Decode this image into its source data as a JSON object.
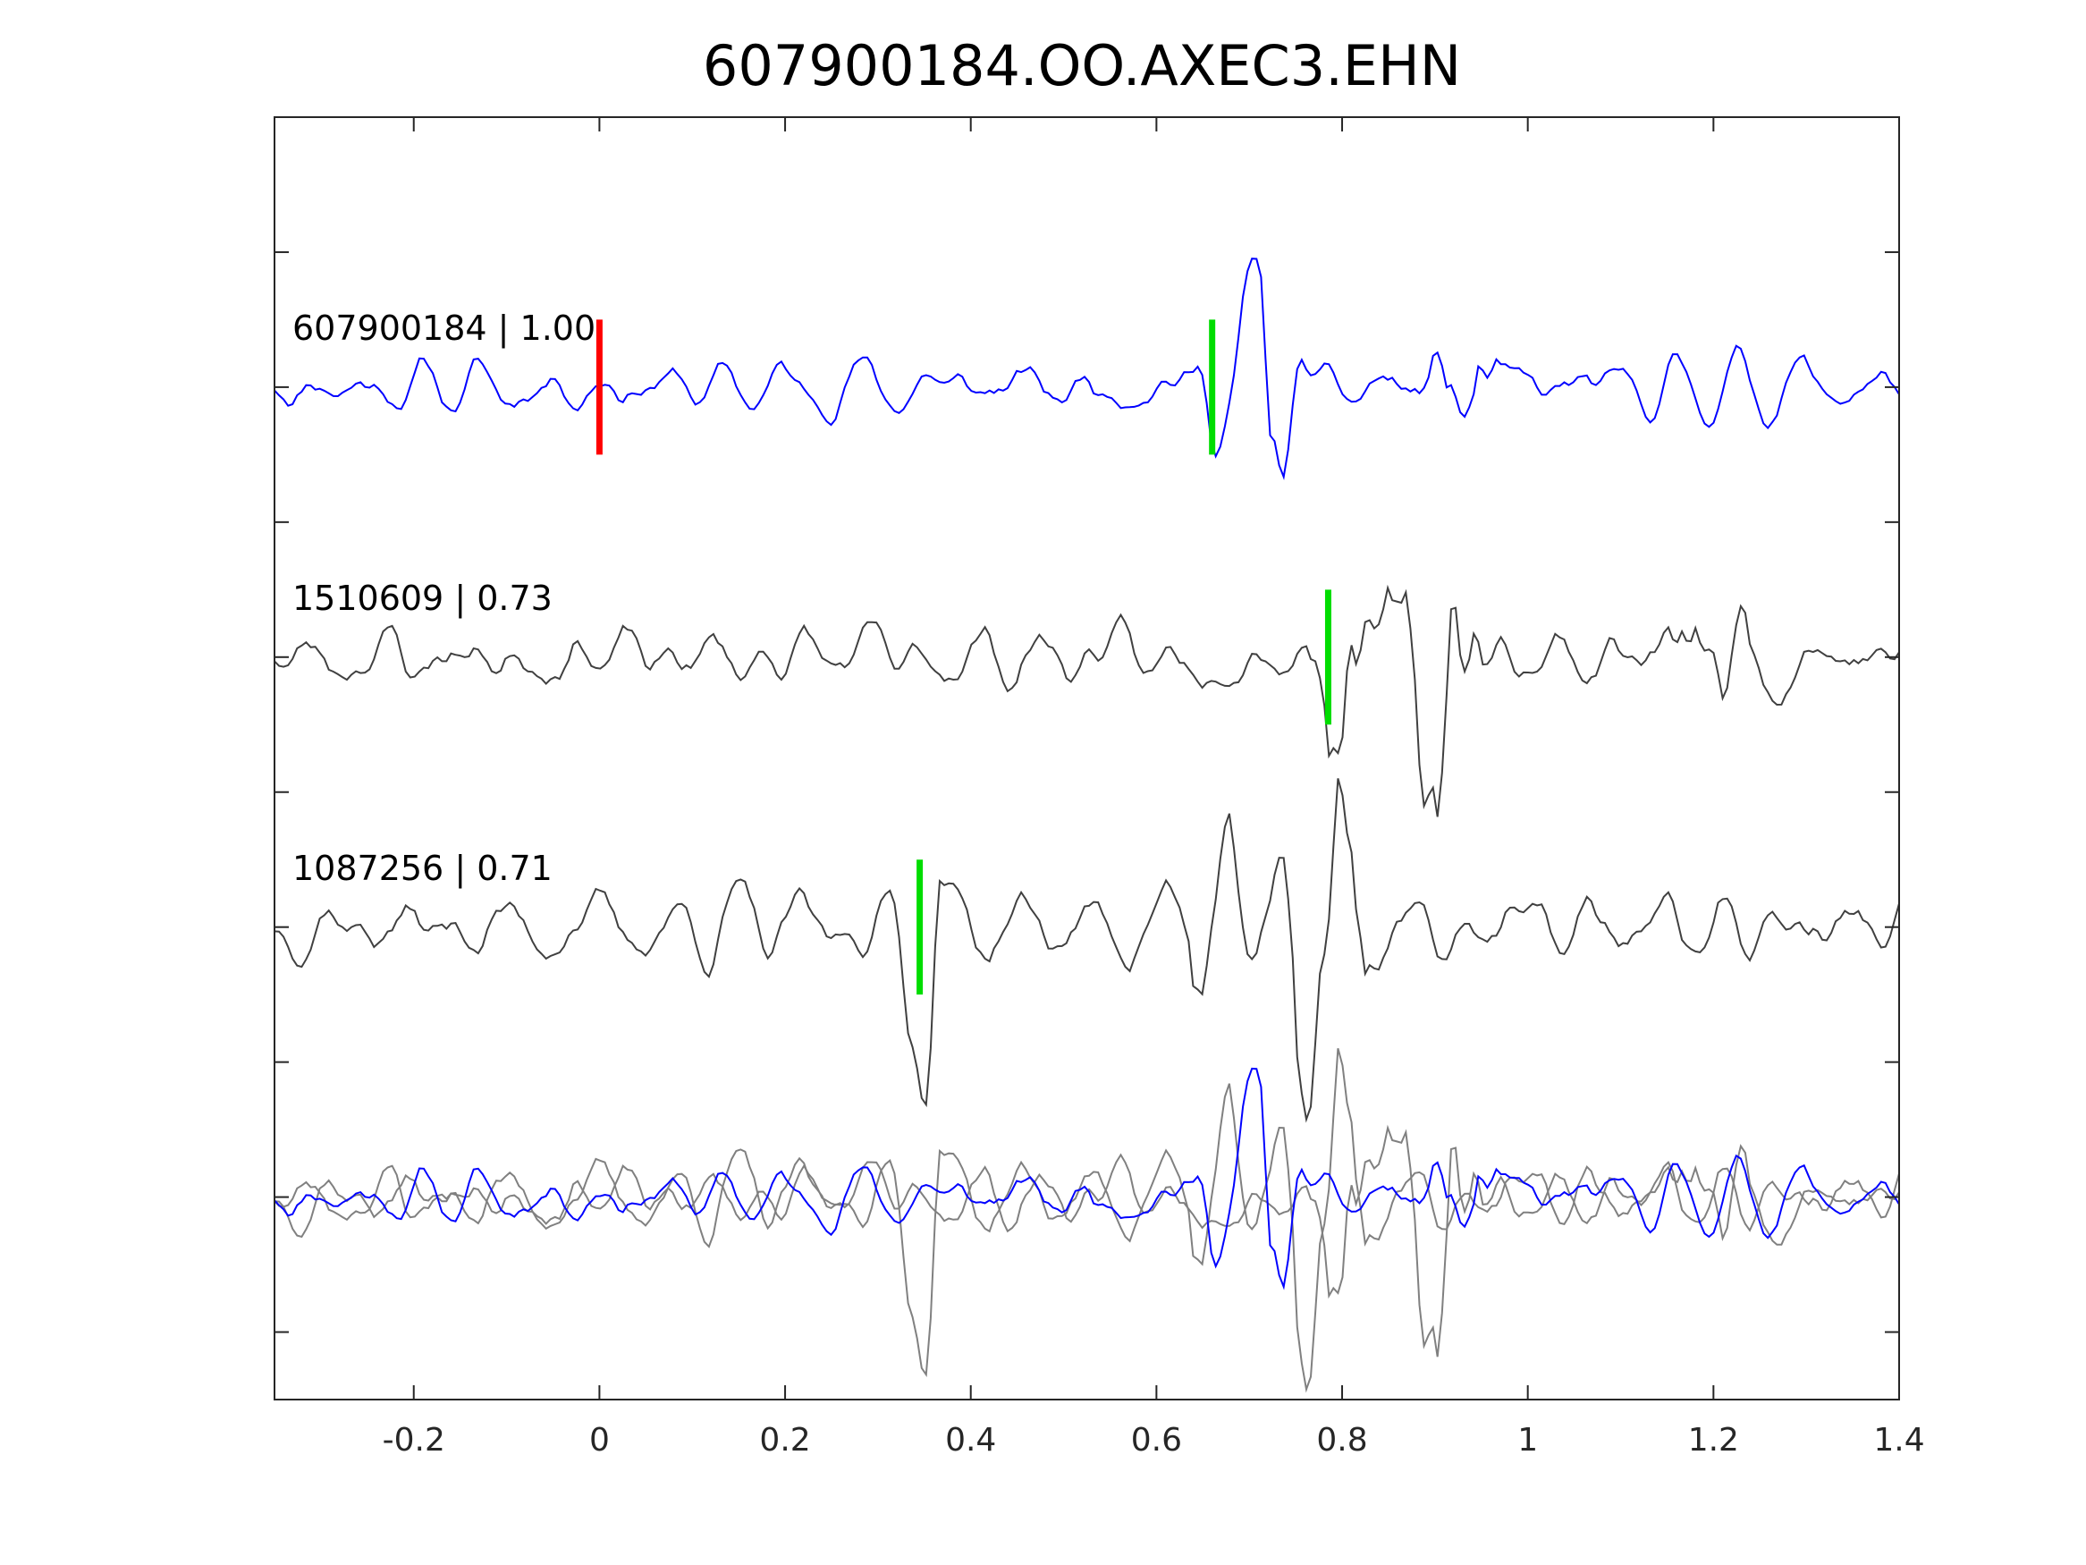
{
  "chart_data": {
    "type": "line",
    "title": "607900184.OO.AXEC3.EHN",
    "xlabel": "",
    "ylabel": "",
    "xlim": [
      -0.35,
      1.4
    ],
    "ylim": [
      0,
      9.5
    ],
    "xticks": [
      -0.2,
      0,
      0.2,
      0.4,
      0.6,
      0.8,
      1,
      1.2,
      1.4
    ],
    "xtick_labels": [
      "-0.2",
      "0",
      "0.2",
      "0.4",
      "0.6",
      "0.8",
      "1",
      "1.2",
      "1.4"
    ],
    "yticks": [
      0.5,
      1.5,
      2.5,
      3.5,
      4.5,
      5.5,
      6.5,
      7.5,
      8.5
    ],
    "grid": false,
    "colors": {
      "primary": "#0000ff",
      "reference": "#404040",
      "overlay_ref": "#808080",
      "p_pick": "#ff0000",
      "s_pick": "#00dd00"
    },
    "traces": [
      {
        "label": "607900184 | 1.00",
        "id": "607900184",
        "cc": 1.0,
        "baseline": 7.5,
        "role": "primary",
        "amplitude": 0.75,
        "seed": 11,
        "events": [
          {
            "t": 0.66,
            "w": 0.02,
            "a": 0.5
          },
          {
            "t": 0.72,
            "w": 0.025,
            "a": 1.8
          },
          {
            "t": 0.93,
            "w": 0.03,
            "a": 1.0
          }
        ],
        "picks": [
          {
            "kind": "P",
            "x": 0.0,
            "y0": 7.0,
            "y1": 8.0
          },
          {
            "kind": "S",
            "x": 0.66,
            "y0": 7.0,
            "y1": 8.0
          }
        ]
      },
      {
        "label": "1510609 | 0.73",
        "id": "1510609",
        "cc": 0.73,
        "baseline": 5.5,
        "role": "reference",
        "amplitude": 0.95,
        "seed": 23,
        "events": [
          {
            "t": 0.8,
            "w": 0.025,
            "a": 1.2
          },
          {
            "t": 0.9,
            "w": 0.04,
            "a": 2.0
          },
          {
            "t": 1.2,
            "w": 0.05,
            "a": 0.6
          }
        ],
        "picks": [
          {
            "kind": "S",
            "x": 0.785,
            "y0": 5.0,
            "y1": 6.0
          }
        ]
      },
      {
        "label": "1087256 | 0.71",
        "id": "1087256",
        "cc": 0.71,
        "baseline": 3.5,
        "role": "reference",
        "amplitude": 1.0,
        "seed": 37,
        "events": [
          {
            "t": 0.35,
            "w": 0.02,
            "a": 1.5
          },
          {
            "t": 0.65,
            "w": 0.03,
            "a": 1.0
          },
          {
            "t": 0.78,
            "w": 0.04,
            "a": 2.2
          }
        ],
        "picks": [
          {
            "kind": "S",
            "x": 0.345,
            "y0": 3.0,
            "y1": 4.0
          }
        ]
      }
    ],
    "overlay": {
      "baseline": 1.5,
      "members": [
        "607900184",
        "1510609",
        "1087256"
      ]
    }
  }
}
